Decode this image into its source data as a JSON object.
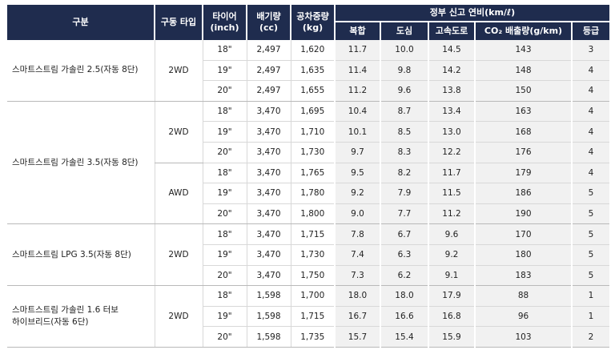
{
  "headers": {
    "category": "구분",
    "drive_type": "구동 타입",
    "tire": "타이어\n(inch)",
    "displacement": "배기량\n(cc)",
    "curb_weight": "공차중량\n(kg)",
    "official_efficiency": "정부 신고 연비(km/ℓ)",
    "combined": "복합",
    "city": "도심",
    "highway": "고속도로",
    "co2": "CO₂ 배출량(g/km)",
    "grade": "등급"
  },
  "groups": [
    {
      "label": "스마트스트림 가솔린 2.5(자동 8단)",
      "drives": [
        {
          "drive": "2WD",
          "rows": [
            {
              "tire": "18\"",
              "cc": "2,497",
              "kg": "1,620",
              "combined": "11.7",
              "city": "10.0",
              "highway": "14.5",
              "co2": "143",
              "grade": "3"
            },
            {
              "tire": "19\"",
              "cc": "2,497",
              "kg": "1,635",
              "combined": "11.4",
              "city": "9.8",
              "highway": "14.2",
              "co2": "148",
              "grade": "4"
            },
            {
              "tire": "20\"",
              "cc": "2,497",
              "kg": "1,655",
              "combined": "11.2",
              "city": "9.6",
              "highway": "13.8",
              "co2": "150",
              "grade": "4"
            }
          ]
        }
      ]
    },
    {
      "label": "스마트스트림 가솔린 3.5(자동 8단)",
      "drives": [
        {
          "drive": "2WD",
          "rows": [
            {
              "tire": "18\"",
              "cc": "3,470",
              "kg": "1,695",
              "combined": "10.4",
              "city": "8.7",
              "highway": "13.4",
              "co2": "163",
              "grade": "4"
            },
            {
              "tire": "19\"",
              "cc": "3,470",
              "kg": "1,710",
              "combined": "10.1",
              "city": "8.5",
              "highway": "13.0",
              "co2": "168",
              "grade": "4"
            },
            {
              "tire": "20\"",
              "cc": "3,470",
              "kg": "1,730",
              "combined": "9.7",
              "city": "8.3",
              "highway": "12.2",
              "co2": "176",
              "grade": "4"
            }
          ]
        },
        {
          "drive": "AWD",
          "rows": [
            {
              "tire": "18\"",
              "cc": "3,470",
              "kg": "1,765",
              "combined": "9.5",
              "city": "8.2",
              "highway": "11.7",
              "co2": "179",
              "grade": "4"
            },
            {
              "tire": "19\"",
              "cc": "3,470",
              "kg": "1,780",
              "combined": "9.2",
              "city": "7.9",
              "highway": "11.5",
              "co2": "186",
              "grade": "5"
            },
            {
              "tire": "20\"",
              "cc": "3,470",
              "kg": "1,800",
              "combined": "9.0",
              "city": "7.7",
              "highway": "11.2",
              "co2": "190",
              "grade": "5"
            }
          ]
        }
      ]
    },
    {
      "label": "스마트스트림 LPG 3.5(자동 8단)",
      "drives": [
        {
          "drive": "2WD",
          "rows": [
            {
              "tire": "18\"",
              "cc": "3,470",
              "kg": "1,715",
              "combined": "7.8",
              "city": "6.7",
              "highway": "9.6",
              "co2": "170",
              "grade": "5"
            },
            {
              "tire": "19\"",
              "cc": "3,470",
              "kg": "1,730",
              "combined": "7.4",
              "city": "6.3",
              "highway": "9.2",
              "co2": "180",
              "grade": "5"
            },
            {
              "tire": "20\"",
              "cc": "3,470",
              "kg": "1,750",
              "combined": "7.3",
              "city": "6.2",
              "highway": "9.1",
              "co2": "183",
              "grade": "5"
            }
          ]
        }
      ]
    },
    {
      "label": "스마트스트림 가솔린 1.6 터보\n하이브리드(자동 6단)",
      "drives": [
        {
          "drive": "2WD",
          "rows": [
            {
              "tire": "18\"",
              "cc": "1,598",
              "kg": "1,700",
              "combined": "18.0",
              "city": "18.0",
              "highway": "17.9",
              "co2": "88",
              "grade": "1"
            },
            {
              "tire": "19\"",
              "cc": "1,598",
              "kg": "1,715",
              "combined": "16.7",
              "city": "16.6",
              "highway": "16.8",
              "co2": "96",
              "grade": "1"
            },
            {
              "tire": "20\"",
              "cc": "1,598",
              "kg": "1,735",
              "combined": "15.7",
              "city": "15.4",
              "highway": "15.9",
              "co2": "103",
              "grade": "2"
            }
          ]
        }
      ]
    }
  ]
}
